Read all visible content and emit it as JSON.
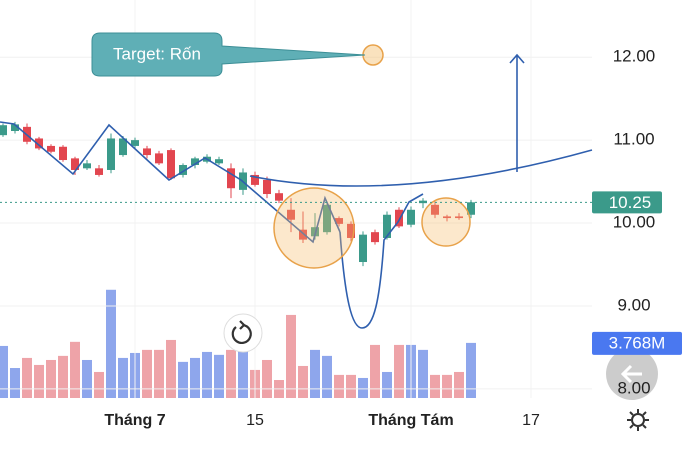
{
  "chart_data": {
    "type": "candlestick",
    "annotation": "Target: Rốn",
    "open": [
      11.06,
      11.11,
      11.16,
      11.02,
      10.93,
      10.92,
      10.78,
      10.66,
      10.66,
      10.64,
      10.82,
      10.93,
      10.9,
      10.84,
      10.88,
      10.58,
      10.7,
      10.74,
      10.72,
      10.66,
      10.4,
      10.58,
      10.52,
      10.36,
      10.16,
      9.92,
      9.84,
      9.89,
      10.06,
      9.99,
      9.53,
      9.89,
      9.82,
      10.16,
      9.98,
      10.24,
      10.22,
      10.08,
      10.08,
      10.1
    ],
    "high": [
      11.2,
      11.22,
      11.2,
      11.04,
      10.95,
      10.94,
      10.8,
      10.76,
      10.7,
      11.08,
      11.05,
      11.03,
      10.93,
      10.87,
      10.9,
      10.72,
      10.8,
      10.83,
      10.8,
      10.72,
      10.66,
      10.62,
      10.56,
      10.4,
      10.3,
      10.14,
      10.12,
      10.26,
      10.08,
      10.02,
      9.9,
      9.92,
      10.14,
      10.19,
      10.2,
      10.3,
      10.26,
      10.1,
      10.12,
      10.28
    ],
    "low": [
      11.04,
      11.08,
      10.95,
      10.88,
      10.84,
      10.74,
      10.58,
      10.64,
      10.56,
      10.6,
      10.8,
      10.9,
      10.78,
      10.7,
      10.52,
      10.55,
      10.66,
      10.72,
      10.7,
      10.3,
      10.34,
      10.44,
      10.3,
      10.24,
      9.89,
      9.76,
      9.8,
      9.86,
      9.96,
      9.78,
      9.48,
      9.74,
      9.8,
      9.94,
      9.95,
      10.18,
      10.06,
      10.02,
      10.04,
      10.06
    ],
    "close": [
      11.18,
      11.19,
      10.98,
      10.9,
      10.86,
      10.76,
      10.64,
      10.72,
      10.58,
      11.02,
      11.02,
      11.0,
      10.82,
      10.72,
      10.54,
      10.7,
      10.78,
      10.8,
      10.77,
      10.42,
      10.61,
      10.46,
      10.35,
      10.27,
      10.04,
      9.8,
      9.95,
      10.22,
      9.99,
      9.82,
      9.86,
      9.77,
      10.1,
      9.96,
      10.16,
      10.27,
      10.1,
      10.06,
      10.06,
      10.25
    ],
    "volume": [
      3.56,
      2.05,
      2.74,
      2.26,
      2.6,
      2.88,
      3.84,
      2.6,
      1.78,
      7.4,
      2.74,
      3.08,
      3.29,
      3.29,
      3.97,
      2.47,
      2.74,
      3.15,
      2.95,
      3.29,
      4.32,
      1.92,
      2.6,
      1.23,
      5.68,
      2.19,
      3.29,
      2.88,
      1.58,
      1.58,
      1.37,
      3.63,
      1.78,
      3.63,
      3.63,
      3.29,
      1.58,
      1.58,
      1.78,
      3.768
    ],
    "volume_label": "3.768M",
    "up_color": "#3b9a8a",
    "down_color": "#e2464f",
    "volume_up_color": "#8ea6ec",
    "volume_down_color": "#eea3a8",
    "xlim": [
      0,
      49
    ],
    "xticks": [
      {
        "value": 11,
        "label": "Tháng 7"
      },
      {
        "value": 21,
        "label": "15"
      },
      {
        "value": 34,
        "label": "Tháng Tám"
      },
      {
        "value": 44,
        "label": "17"
      }
    ],
    "ylim": [
      7.89,
      12.69
    ],
    "yticks": [
      {
        "value": 12,
        "label": "12.00"
      },
      {
        "value": 11,
        "label": "11.00"
      },
      {
        "value": 10,
        "label": "10.00"
      },
      {
        "value": 9,
        "label": "9.00"
      },
      {
        "value": 8,
        "label": "8.00"
      }
    ],
    "volume_lim": [
      0,
      8
    ]
  }
}
